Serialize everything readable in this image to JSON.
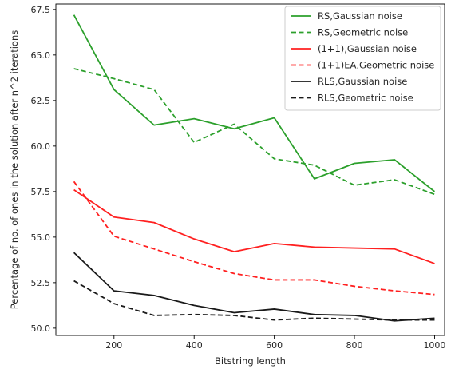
{
  "chart_data": {
    "type": "line",
    "title": "",
    "xlabel": "Bitstring length",
    "ylabel": "Percentage of no. of ones in the solution after n^2 iterations",
    "xlim": [
      55,
      1025
    ],
    "ylim": [
      49.6,
      67.8
    ],
    "xticks": [
      200,
      400,
      600,
      800,
      1000
    ],
    "xtick_labels": [
      "200",
      "400",
      "600",
      "800",
      "1000"
    ],
    "yticks": [
      50.0,
      52.5,
      55.0,
      57.5,
      60.0,
      62.5,
      65.0,
      67.5
    ],
    "ytick_labels": [
      "50.0",
      "52.5",
      "55.0",
      "57.5",
      "60.0",
      "62.5",
      "65.0",
      "67.5"
    ],
    "grid": false,
    "legend_position": "top-right",
    "x": [
      100,
      200,
      300,
      400,
      500,
      600,
      700,
      800,
      900,
      1000
    ],
    "series": [
      {
        "name": "RS,Gaussian noise",
        "color": "#2ca02c",
        "dash": "solid",
        "values": [
          67.2,
          63.1,
          61.15,
          61.5,
          60.95,
          61.55,
          58.2,
          59.05,
          59.25,
          57.5
        ]
      },
      {
        "name": "RS,Geometric noise",
        "color": "#2ca02c",
        "dash": "dashed",
        "values": [
          64.25,
          63.7,
          63.1,
          60.2,
          61.2,
          59.3,
          58.95,
          57.85,
          58.15,
          57.35
        ]
      },
      {
        "name": "(1+1),Gaussian noise",
        "color": "#ff2020",
        "dash": "solid",
        "values": [
          57.6,
          56.1,
          55.8,
          54.9,
          54.2,
          54.65,
          54.45,
          54.4,
          54.35,
          53.55
        ]
      },
      {
        "name": "(1+1)EA,Geometric noise",
        "color": "#ff2020",
        "dash": "dashed",
        "values": [
          58.05,
          55.05,
          54.35,
          53.65,
          53.0,
          52.65,
          52.65,
          52.3,
          52.05,
          51.85
        ]
      },
      {
        "name": "RLS,Gaussian noise",
        "color": "#1a1a1a",
        "dash": "solid",
        "values": [
          54.15,
          52.05,
          51.8,
          51.25,
          50.85,
          51.05,
          50.75,
          50.7,
          50.4,
          50.55
        ]
      },
      {
        "name": "RLS,Geometric noise",
        "color": "#1a1a1a",
        "dash": "dashed",
        "values": [
          52.6,
          51.35,
          50.7,
          50.75,
          50.7,
          50.45,
          50.55,
          50.5,
          50.45,
          50.45
        ]
      }
    ]
  }
}
